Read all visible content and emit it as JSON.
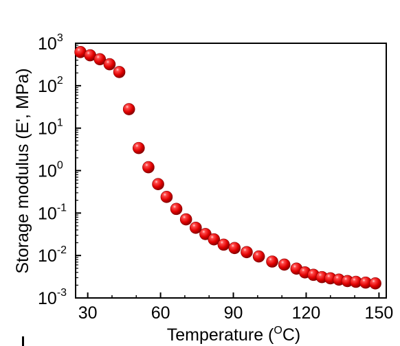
{
  "chart_data": {
    "type": "scatter",
    "xlabel": "Temperature",
    "xlabel_unit_open": " (",
    "xlabel_unit_sup": "O",
    "xlabel_unit_main": "C",
    "xlabel_unit_close": ")",
    "ylabel": "Storage modulus (E', MPa)",
    "xlim": [
      25,
      153
    ],
    "ylim_log10": [
      -3,
      3
    ],
    "y_scale": "log",
    "x_ticks": [
      30,
      60,
      90,
      120,
      150
    ],
    "x_tick_labels": [
      "30",
      "60",
      "90",
      "120",
      "150"
    ],
    "y_ticks": [
      {
        "value": 0.001,
        "base": "10",
        "exp": "-3"
      },
      {
        "value": 0.01,
        "base": "10",
        "exp": "-2"
      },
      {
        "value": 0.1,
        "base": "10",
        "exp": "-1"
      },
      {
        "value": 1,
        "base": "10",
        "exp": "0"
      },
      {
        "value": 10,
        "base": "10",
        "exp": "1"
      },
      {
        "value": 100,
        "base": "10",
        "exp": "2"
      },
      {
        "value": 1000,
        "base": "10",
        "exp": "3"
      }
    ],
    "grid": false,
    "marker_color": "#e00000",
    "points": [
      {
        "x": 27,
        "y": 620
      },
      {
        "x": 31,
        "y": 520
      },
      {
        "x": 35,
        "y": 420
      },
      {
        "x": 39,
        "y": 320
      },
      {
        "x": 43,
        "y": 210
      },
      {
        "x": 47,
        "y": 28
      },
      {
        "x": 51,
        "y": 3.4
      },
      {
        "x": 55,
        "y": 1.2
      },
      {
        "x": 59,
        "y": 0.48
      },
      {
        "x": 62.5,
        "y": 0.24
      },
      {
        "x": 66.5,
        "y": 0.125
      },
      {
        "x": 70.5,
        "y": 0.071
      },
      {
        "x": 74.5,
        "y": 0.045
      },
      {
        "x": 78.5,
        "y": 0.032
      },
      {
        "x": 82,
        "y": 0.024
      },
      {
        "x": 86,
        "y": 0.018
      },
      {
        "x": 90.5,
        "y": 0.015
      },
      {
        "x": 95.5,
        "y": 0.012
      },
      {
        "x": 100.5,
        "y": 0.0095
      },
      {
        "x": 106,
        "y": 0.0072
      },
      {
        "x": 111,
        "y": 0.0061
      },
      {
        "x": 116,
        "y": 0.0049
      },
      {
        "x": 119.5,
        "y": 0.004
      },
      {
        "x": 123,
        "y": 0.0035
      },
      {
        "x": 126.5,
        "y": 0.0031
      },
      {
        "x": 130,
        "y": 0.0029
      },
      {
        "x": 133.5,
        "y": 0.0027
      },
      {
        "x": 137,
        "y": 0.0025
      },
      {
        "x": 140.5,
        "y": 0.0024
      },
      {
        "x": 144.5,
        "y": 0.0023
      },
      {
        "x": 148.5,
        "y": 0.0022
      }
    ]
  }
}
